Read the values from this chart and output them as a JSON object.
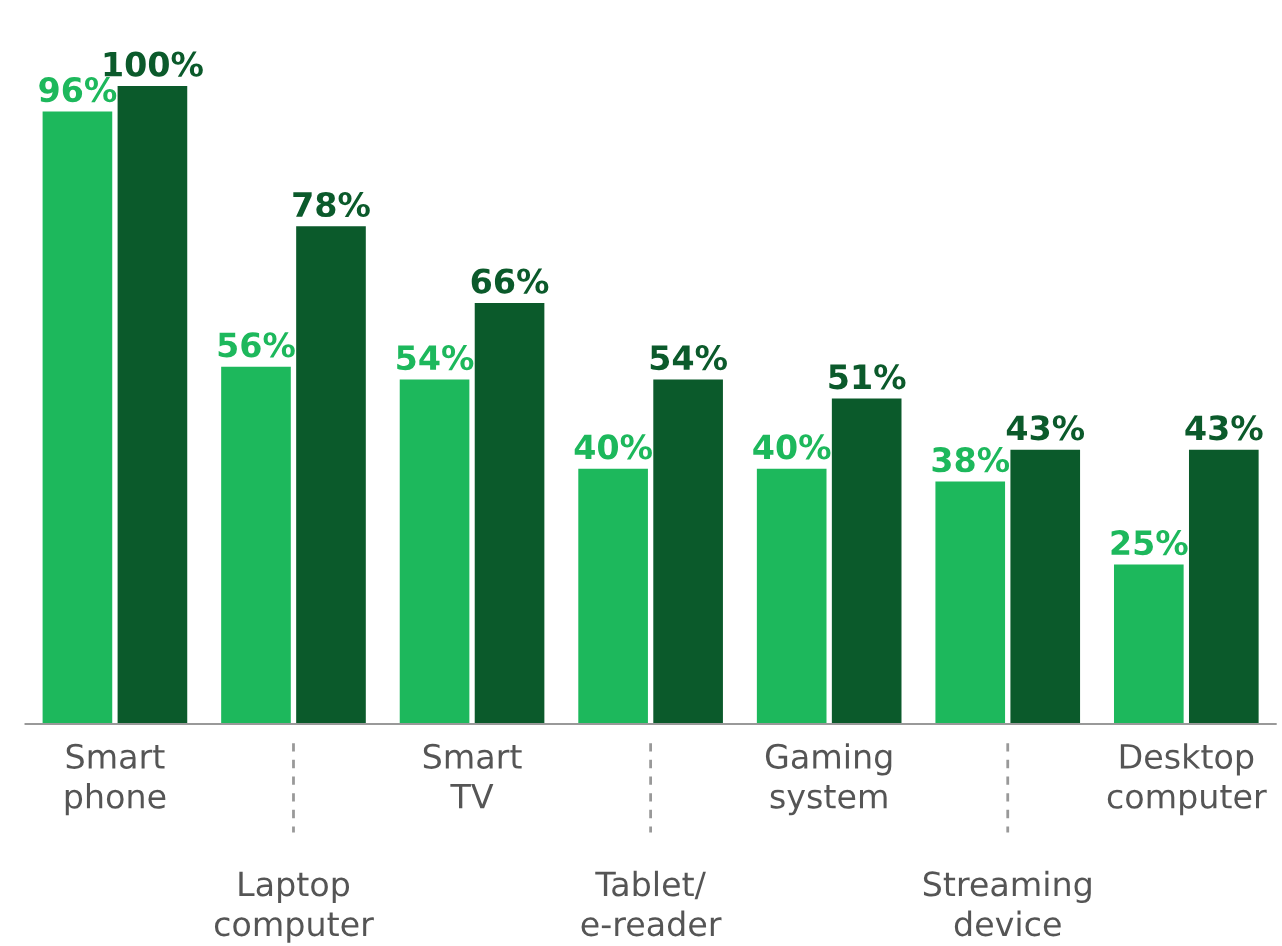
{
  "chart_data": {
    "type": "bar",
    "categories": [
      "Smart\nphone",
      "Laptop\ncomputer",
      "Smart\nTV",
      "Tablet/\ne-reader",
      "Gaming\nsystem",
      "Streaming\ndevice",
      "Desktop\ncomputer"
    ],
    "series": [
      {
        "color": "#1db85c",
        "values": [
          96,
          56,
          54,
          40,
          40,
          38,
          25
        ],
        "value_labels": [
          "96%",
          "56%",
          "54%",
          "40%",
          "40%",
          "38%",
          "25%"
        ]
      },
      {
        "color": "#0b5a2b",
        "values": [
          100,
          78,
          66,
          54,
          51,
          43,
          43
        ],
        "value_labels": [
          "100%",
          "78%",
          "66%",
          "54%",
          "51%",
          "43%",
          "43%"
        ]
      }
    ]
  }
}
